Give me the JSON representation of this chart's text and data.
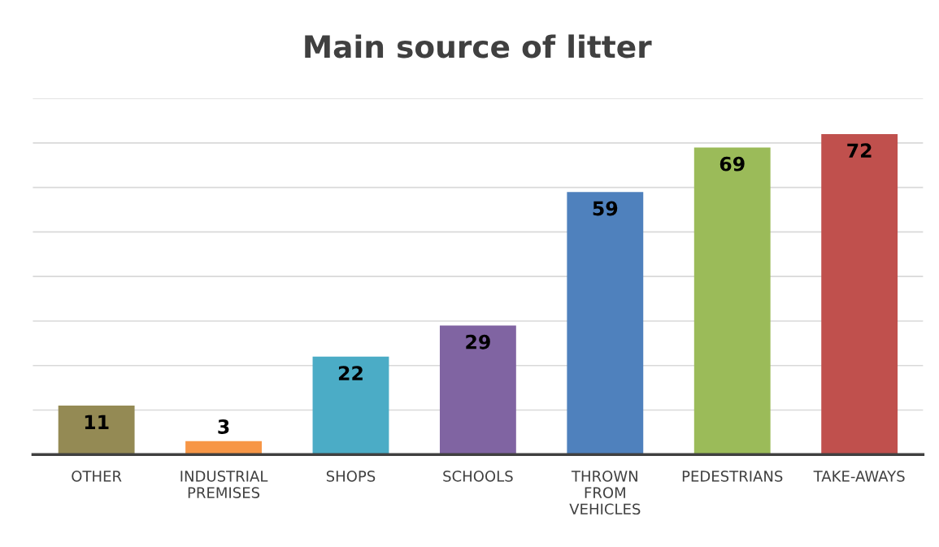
{
  "chart_data": {
    "type": "bar",
    "title": "Main source of litter",
    "categories": [
      "OTHER",
      "INDUSTRIAL PREMISES",
      "SHOPS",
      "SCHOOLS",
      "THROWN FROM VEHICLES",
      "PEDESTRIANS",
      "TAKE-AWAYS"
    ],
    "values": [
      11,
      3,
      22,
      29,
      59,
      69,
      72
    ],
    "colors": [
      "#948a54",
      "#f79646",
      "#4bacc6",
      "#8064a2",
      "#4f81bd",
      "#9bbb59",
      "#c0504d"
    ],
    "ylim": [
      0,
      80
    ],
    "yticks": [
      {
        "value": 10,
        "label": null
      },
      {
        "value": 20,
        "label": null
      },
      {
        "value": 30,
        "label": null
      },
      {
        "value": 40,
        "label": null
      },
      {
        "value": 50,
        "label": null
      },
      {
        "value": 60,
        "label": null
      },
      {
        "value": 70,
        "label": null
      },
      {
        "value": 80,
        "label": null
      }
    ],
    "grid": "y",
    "tick_labels": "x",
    "data_labels": true
  }
}
